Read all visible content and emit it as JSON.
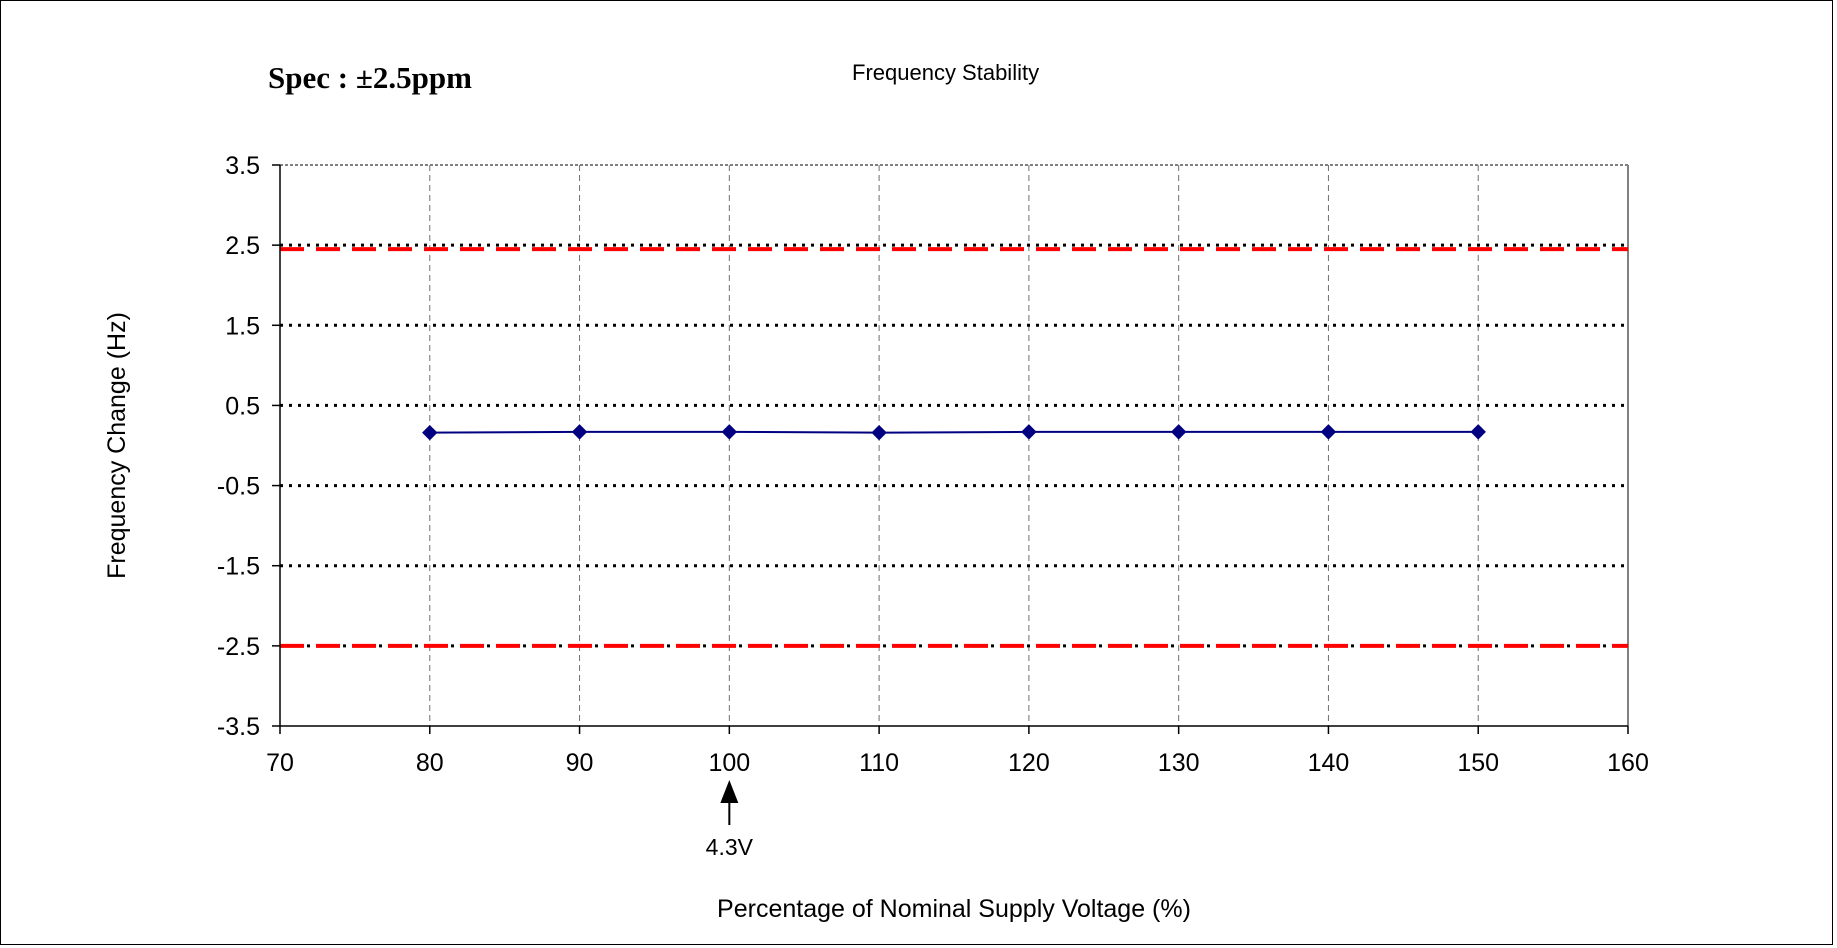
{
  "chart_data": {
    "type": "line",
    "title": "Frequency Stability",
    "subtitle": "Spec : ±2.5ppm",
    "xlabel": "Percentage of Nominal Supply Voltage (%)",
    "ylabel": "Frequency Change (Hz)",
    "xlim": [
      70,
      160
    ],
    "ylim": [
      -3.5,
      3.5
    ],
    "x_ticks": [
      "70",
      "80",
      "90",
      "100",
      "110",
      "120",
      "130",
      "140",
      "150",
      "160"
    ],
    "y_ticks": [
      "3.5",
      "2.5",
      "1.5",
      "0.5",
      "-0.5",
      "-1.5",
      "-2.5",
      "-3.5"
    ],
    "x_tick_values": [
      70,
      80,
      90,
      100,
      110,
      120,
      130,
      140,
      150,
      160
    ],
    "y_tick_values": [
      3.5,
      2.5,
      1.5,
      0.5,
      -0.5,
      -1.5,
      -2.5,
      -3.5
    ],
    "x": [
      80,
      90,
      100,
      110,
      120,
      130,
      140,
      150
    ],
    "series": [
      {
        "values": [
          0.16,
          0.17,
          0.17,
          0.16,
          0.17,
          0.17,
          0.17,
          0.17
        ],
        "color": "#000080",
        "marker": "diamond"
      }
    ],
    "limit_lines": [
      {
        "y": 2.45,
        "color": "#ff0000",
        "style": "dashed"
      },
      {
        "y": -2.5,
        "color": "#ff0000",
        "style": "dashed"
      }
    ],
    "annotations": [
      {
        "text": "4.3V",
        "x": 100,
        "arrow": "up"
      }
    ],
    "grid": true,
    "legend": "none"
  }
}
